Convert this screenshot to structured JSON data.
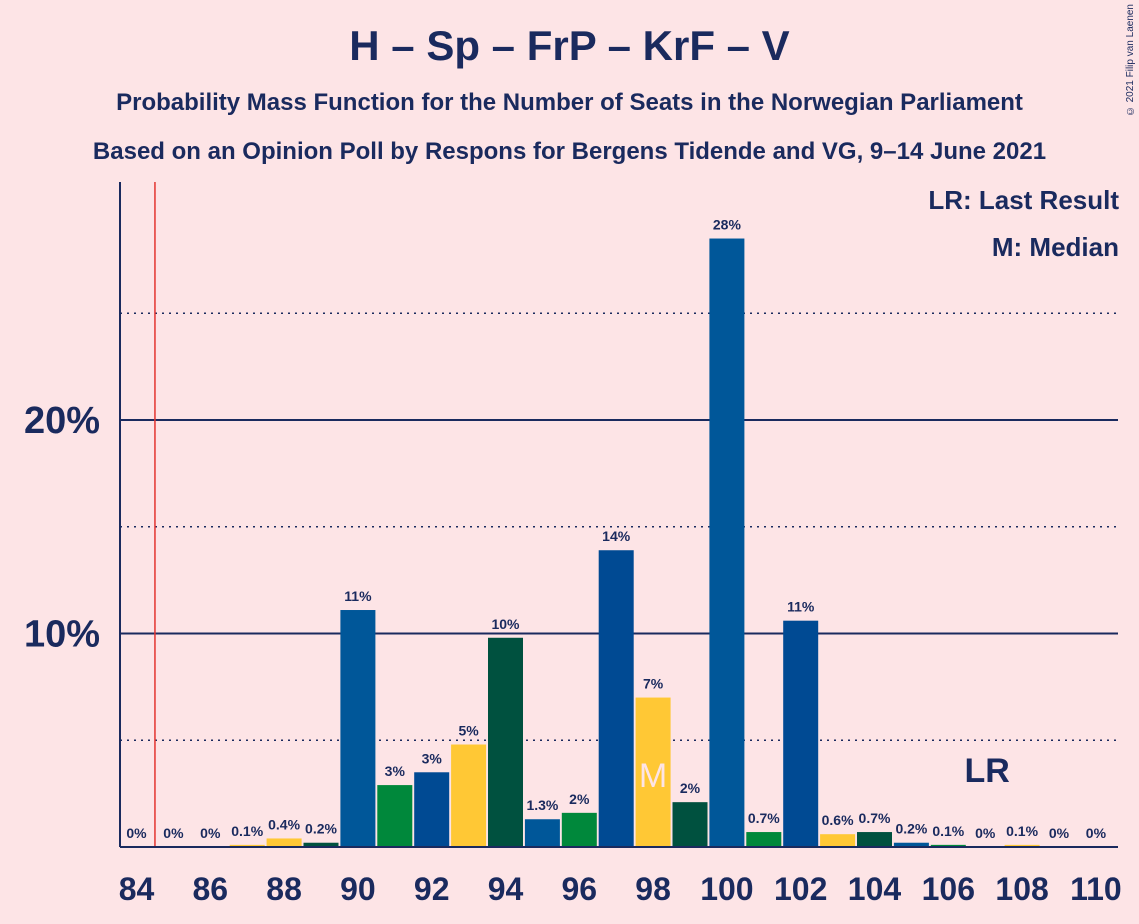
{
  "chart_data": {
    "type": "bar",
    "title": "H – Sp – FrP – KrF – V",
    "subtitle_1": "Probability Mass Function for the Number of Seats in the Norwegian Parliament",
    "subtitle_2": "Based on an Opinion Poll by Respons for Bergens Tidende and VG, 9–14 June 2021",
    "copyright": "© 2021 Filip van Laenen",
    "legend": {
      "lr": "LR: Last Result",
      "m": "M: Median"
    },
    "ylim": [
      0,
      31
    ],
    "y_ticks": [
      10,
      20
    ],
    "y_tick_labels": [
      "10%",
      "20%"
    ],
    "y_dotted_lines": [
      5,
      15,
      25
    ],
    "x_tick_values": [
      84,
      86,
      88,
      90,
      92,
      94,
      96,
      98,
      100,
      102,
      104,
      106,
      108,
      110
    ],
    "x_tick_labels": [
      "84",
      "86",
      "88",
      "90",
      "92",
      "94",
      "96",
      "98",
      "100",
      "102",
      "104",
      "106",
      "108",
      "110"
    ],
    "last_result_x": 84.5,
    "last_result_label": "LR",
    "last_result_label_x": 107,
    "median_x": 98,
    "median_label": "M",
    "bars": [
      {
        "x": 84,
        "value": 0,
        "label": "0%",
        "color": "#005799"
      },
      {
        "x": 85,
        "value": 0,
        "label": "0%",
        "color": "#00883b"
      },
      {
        "x": 86,
        "value": 0,
        "label": "0%",
        "color": "#004a93"
      },
      {
        "x": 87,
        "value": 0.1,
        "label": "0.1%",
        "color": "#ffc835"
      },
      {
        "x": 88,
        "value": 0.4,
        "label": "0.4%",
        "color": "#ffc835"
      },
      {
        "x": 89,
        "value": 0.2,
        "label": "0.2%",
        "color": "#00513f"
      },
      {
        "x": 90,
        "value": 11.1,
        "label": "11%",
        "color": "#005799"
      },
      {
        "x": 91,
        "value": 2.9,
        "label": "3%",
        "color": "#00883b"
      },
      {
        "x": 92,
        "value": 3.5,
        "label": "3%",
        "color": "#004a93"
      },
      {
        "x": 93,
        "value": 4.8,
        "label": "5%",
        "color": "#ffc835"
      },
      {
        "x": 94,
        "value": 9.8,
        "label": "10%",
        "color": "#00513f"
      },
      {
        "x": 95,
        "value": 1.3,
        "label": "1.3%",
        "color": "#005799"
      },
      {
        "x": 96,
        "value": 1.6,
        "label": "2%",
        "color": "#00883b"
      },
      {
        "x": 97,
        "value": 13.9,
        "label": "14%",
        "color": "#004a93"
      },
      {
        "x": 98,
        "value": 7.0,
        "label": "7%",
        "color": "#ffc835"
      },
      {
        "x": 99,
        "value": 2.1,
        "label": "2%",
        "color": "#00513f"
      },
      {
        "x": 100,
        "value": 28.5,
        "label": "28%",
        "color": "#005799"
      },
      {
        "x": 101,
        "value": 0.7,
        "label": "0.7%",
        "color": "#00883b"
      },
      {
        "x": 102,
        "value": 10.6,
        "label": "11%",
        "color": "#004a93"
      },
      {
        "x": 103,
        "value": 0.6,
        "label": "0.6%",
        "color": "#ffc835"
      },
      {
        "x": 104,
        "value": 0.7,
        "label": "0.7%",
        "color": "#00513f"
      },
      {
        "x": 105,
        "value": 0.2,
        "label": "0.2%",
        "color": "#005799"
      },
      {
        "x": 106,
        "value": 0.1,
        "label": "0.1%",
        "color": "#00883b"
      },
      {
        "x": 107,
        "value": 0,
        "label": "0%",
        "color": "#004a93"
      },
      {
        "x": 108,
        "value": 0.1,
        "label": "0.1%",
        "color": "#ffc835"
      },
      {
        "x": 109,
        "value": 0,
        "label": "0%",
        "color": "#00513f"
      },
      {
        "x": 110,
        "value": 0,
        "label": "0%",
        "color": "#005799"
      }
    ],
    "colors": {
      "background": "#fde4e6",
      "text": "#1a2a5e",
      "gridline": "#1a2a5e",
      "last_result_line": "#e3342f",
      "median_text": "#fde4e6"
    }
  }
}
